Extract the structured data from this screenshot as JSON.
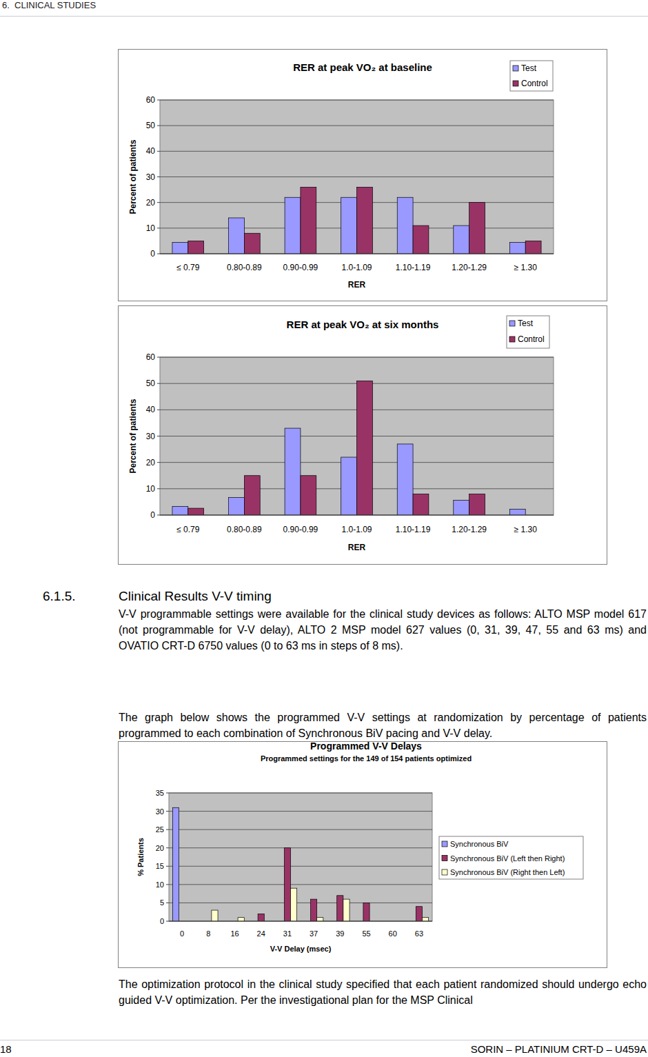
{
  "header": {
    "text": "6.  CLINICAL STUDIES"
  },
  "chart_data": [
    {
      "type": "bar",
      "title": "RER at peak VO₂ at baseline",
      "xlabel": "RER",
      "ylabel": "Percent of patients",
      "categories": [
        "≤ 0.79",
        "0.80-0.89",
        "0.90-0.99",
        "1.0-1.09",
        "1.10-1.19",
        "1.20-1.29",
        "≥ 1.30"
      ],
      "series": [
        {
          "name": "Test",
          "color": "#9999ff",
          "values": [
            4.4,
            14,
            22,
            22,
            22,
            11,
            4.4
          ]
        },
        {
          "name": "Control",
          "color": "#993366",
          "values": [
            5,
            8,
            26,
            26,
            11,
            20,
            5
          ]
        }
      ],
      "ylim": [
        0,
        60
      ],
      "yticks": [
        0,
        10,
        20,
        30,
        40,
        50,
        60
      ],
      "grid": true,
      "legend": "upper right"
    },
    {
      "type": "bar",
      "title": "RER at peak VO₂ at six months",
      "xlabel": "RER",
      "ylabel": "Percent of patients",
      "categories": [
        "≤ 0.79",
        "0.80-0.89",
        "0.90-0.99",
        "1.0-1.09",
        "1.10-1.19",
        "1.20-1.29",
        "≥ 1.30"
      ],
      "series": [
        {
          "name": "Test",
          "color": "#9999ff",
          "values": [
            3.3,
            6.7,
            33,
            22,
            27,
            5.6,
            2.2
          ]
        },
        {
          "name": "Control",
          "color": "#993366",
          "values": [
            2.6,
            15,
            15,
            51,
            8,
            8,
            0
          ]
        }
      ],
      "ylim": [
        0,
        60
      ],
      "yticks": [
        0,
        10,
        20,
        30,
        40,
        50,
        60
      ],
      "grid": true,
      "legend": "upper right"
    },
    {
      "type": "bar",
      "title": "Programmed V-V Delays",
      "subtitle": "Programmed settings for the 149 of 154 patients optimized",
      "xlabel": "V-V Delay (msec)",
      "ylabel": "% Patients",
      "categories": [
        "0",
        "8",
        "16",
        "24",
        "31",
        "37",
        "39",
        "55",
        "60",
        "63"
      ],
      "series": [
        {
          "name": "Synchronous BiV",
          "color": "#9999ff",
          "values": [
            31,
            0,
            0,
            0,
            0,
            0,
            0,
            0,
            0,
            0
          ]
        },
        {
          "name": "Synchronous BiV (Left then Right)",
          "color": "#993366",
          "values": [
            0,
            0,
            0,
            2,
            20,
            6,
            7,
            5,
            0,
            4
          ]
        },
        {
          "name": "Synchronous BiV (Right then Left)",
          "color": "#ffffcc",
          "values": [
            0,
            3,
            1,
            0,
            9,
            1,
            6,
            0,
            0,
            1
          ]
        }
      ],
      "ylim": [
        0,
        35
      ],
      "yticks": [
        0,
        5,
        10,
        15,
        20,
        25,
        30,
        35
      ],
      "grid": true,
      "legend": "right"
    }
  ],
  "section": {
    "number": "6.1.5.",
    "title": "Clinical Results V-V timing",
    "paragraphs": [
      "V-V programmable settings were available for the clinical study devices as follows: ALTO MSP model 617 (not programmable for V-V delay), ALTO 2 MSP model 627 values (0, 31, 39, 47, 55 and 63 ms) and OVATIO CRT-D 6750 values (0 to 63 ms in steps of 8 ms).",
      "The graph below shows the programmed V-V settings at randomization by percentage of patients programmed to each combination of Synchronous BiV pacing and V-V delay.",
      "The optimization protocol in the clinical study specified that each patient randomized should undergo echo guided V-V optimization. Per the investigational plan for the MSP Clinical"
    ]
  },
  "footer": {
    "page": "18",
    "text": "SORIN – PLATINIUM CRT-D – U459A"
  }
}
